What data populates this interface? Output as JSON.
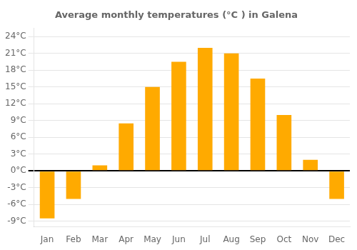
{
  "chart_data": {
    "type": "bar",
    "title": "Average monthly temperatures (°C ) in Galena",
    "categories": [
      "Jan",
      "Feb",
      "Mar",
      "Apr",
      "May",
      "Jun",
      "Jul",
      "Aug",
      "Sep",
      "Oct",
      "Nov",
      "Dec"
    ],
    "values": [
      -8.5,
      -5.0,
      1.0,
      8.5,
      15.0,
      19.5,
      22.0,
      21.0,
      16.5,
      10.0,
      2.0,
      -5.0
    ],
    "color": "#FFAA00",
    "ylim": [
      -10.0,
      25.5
    ],
    "yticks": [
      {
        "value": -9,
        "label": "-9°C"
      },
      {
        "value": -6,
        "label": "-6°C"
      },
      {
        "value": -3,
        "label": "-3°C"
      },
      {
        "value": 0,
        "label": "0°C"
      },
      {
        "value": 3,
        "label": "3°C"
      },
      {
        "value": 6,
        "label": "6°C"
      },
      {
        "value": 9,
        "label": "9°C"
      },
      {
        "value": 12,
        "label": "12°C"
      },
      {
        "value": 15,
        "label": "15°C"
      },
      {
        "value": 18,
        "label": "18°C"
      },
      {
        "value": 21,
        "label": "21°C"
      },
      {
        "value": 24,
        "label": "24°C"
      }
    ],
    "grid": true
  }
}
